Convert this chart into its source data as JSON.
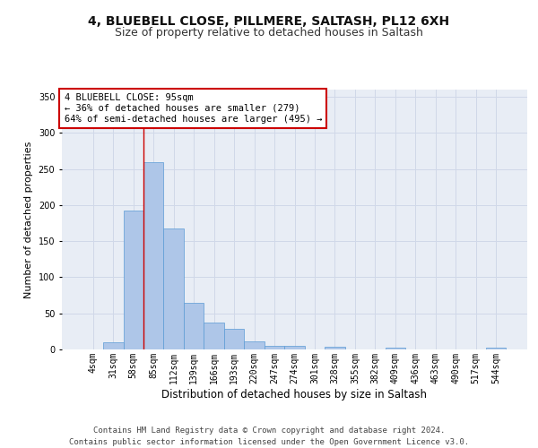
{
  "title1": "4, BLUEBELL CLOSE, PILLMERE, SALTASH, PL12 6XH",
  "title2": "Size of property relative to detached houses in Saltash",
  "xlabel": "Distribution of detached houses by size in Saltash",
  "ylabel": "Number of detached properties",
  "categories": [
    "4sqm",
    "31sqm",
    "58sqm",
    "85sqm",
    "112sqm",
    "139sqm",
    "166sqm",
    "193sqm",
    "220sqm",
    "247sqm",
    "274sqm",
    "301sqm",
    "328sqm",
    "355sqm",
    "382sqm",
    "409sqm",
    "436sqm",
    "463sqm",
    "490sqm",
    "517sqm",
    "544sqm"
  ],
  "values": [
    0,
    10,
    192,
    260,
    168,
    65,
    37,
    28,
    11,
    5,
    5,
    0,
    4,
    0,
    0,
    3,
    0,
    0,
    0,
    0,
    2
  ],
  "bar_color": "#aec6e8",
  "bar_edge_color": "#5b9bd5",
  "grid_color": "#d0d8e8",
  "background_color": "#e8edf5",
  "annotation_box_text": "4 BLUEBELL CLOSE: 95sqm\n← 36% of detached houses are smaller (279)\n64% of semi-detached houses are larger (495) →",
  "annotation_box_color": "#ffffff",
  "annotation_box_edge_color": "#cc0000",
  "vline_x": 2.5,
  "vline_color": "#cc0000",
  "ylim": [
    0,
    360
  ],
  "yticks": [
    0,
    50,
    100,
    150,
    200,
    250,
    300,
    350
  ],
  "footnote": "Contains HM Land Registry data © Crown copyright and database right 2024.\nContains public sector information licensed under the Open Government Licence v3.0.",
  "title1_fontsize": 10,
  "title2_fontsize": 9,
  "xlabel_fontsize": 8.5,
  "ylabel_fontsize": 8,
  "annotation_fontsize": 7.5,
  "footnote_fontsize": 6.5,
  "tick_fontsize": 7
}
